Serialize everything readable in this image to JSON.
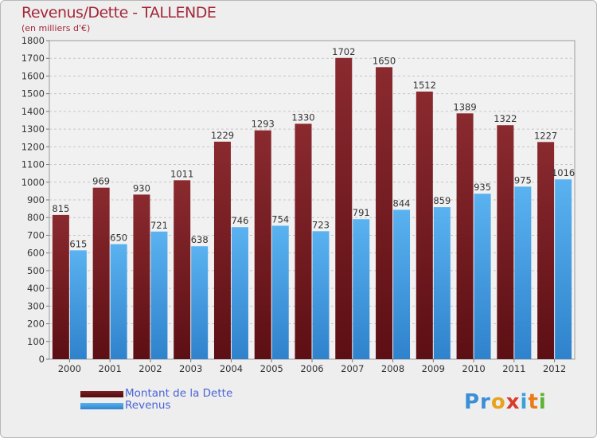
{
  "chart_data": {
    "type": "bar",
    "title": "Revenus/Dette - TALLENDE",
    "subtitle": "(en milliers d'€)",
    "categories": [
      "2000",
      "2001",
      "2002",
      "2003",
      "2004",
      "2005",
      "2006",
      "2007",
      "2008",
      "2009",
      "2010",
      "2011",
      "2012"
    ],
    "series": [
      {
        "name": "Montant de la Dette",
        "color": "#7a1f24",
        "values": [
          815,
          969,
          930,
          1011,
          1229,
          1293,
          1330,
          1702,
          1650,
          1512,
          1389,
          1322,
          1227
        ]
      },
      {
        "name": "Revenus",
        "color": "#4ea6e8",
        "values": [
          615,
          650,
          721,
          638,
          746,
          754,
          723,
          791,
          844,
          859,
          935,
          975,
          1016
        ]
      }
    ],
    "ylim": [
      0,
      1800
    ],
    "ytick_step": 100,
    "yticks": [
      "0",
      "100",
      "200",
      "300",
      "400",
      "500",
      "600",
      "700",
      "800",
      "900",
      "1000",
      "1100",
      "1200",
      "1300",
      "1400",
      "1500",
      "1600",
      "1700",
      "1800"
    ],
    "grid": true,
    "legend": "bottom-left",
    "xlabel": "",
    "ylabel": ""
  },
  "logo_text": [
    "Pr",
    "o",
    "x",
    "i",
    "t",
    "i"
  ]
}
